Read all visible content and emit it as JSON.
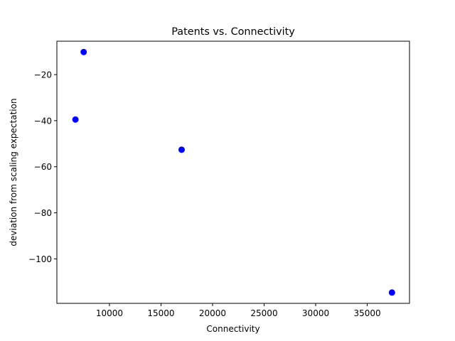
{
  "chart_data": {
    "type": "scatter",
    "title": "Patents vs. Connectivity",
    "xlabel": "Connectivity",
    "ylabel": "deviation from scaling expectation",
    "xlim": [
      4900,
      39100
    ],
    "ylim": [
      -119.3,
      -5.5
    ],
    "x_ticks": [
      10000,
      15000,
      20000,
      25000,
      30000,
      35000
    ],
    "y_ticks": [
      -20,
      -40,
      -60,
      -80,
      -100
    ],
    "grid": false,
    "marker_color": "#0000ff",
    "points": [
      {
        "x": 7500,
        "y": -10.2
      },
      {
        "x": 6700,
        "y": -39.5
      },
      {
        "x": 17000,
        "y": -52.6
      },
      {
        "x": 37400,
        "y": -114.6
      }
    ]
  }
}
